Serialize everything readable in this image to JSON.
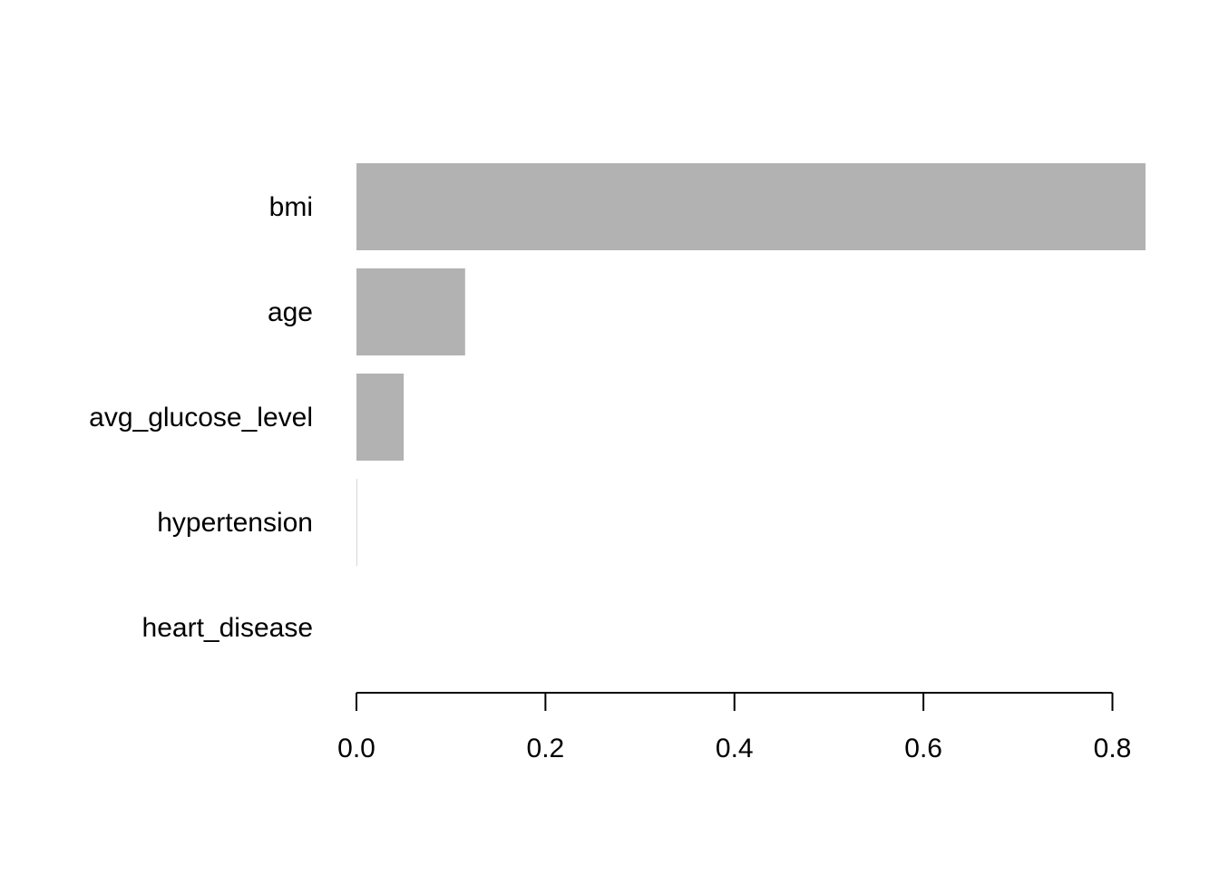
{
  "chart_data": {
    "type": "bar",
    "orientation": "horizontal",
    "title": "",
    "xlabel": "",
    "ylabel": "",
    "categories": [
      "bmi",
      "age",
      "avg_glucose_level",
      "hypertension",
      "heart_disease"
    ],
    "values": [
      0.835,
      0.115,
      0.05,
      0.0005,
      0.0
    ],
    "xlim": [
      0,
      0.8
    ],
    "x_ticks": [
      0.0,
      0.2,
      0.4,
      0.6,
      0.8
    ],
    "x_tick_labels": [
      "0.0",
      "0.2",
      "0.4",
      "0.6",
      "0.8"
    ],
    "bar_color": "#b2b2b2",
    "axis_color": "#000000",
    "grid": false,
    "legend": "none"
  }
}
